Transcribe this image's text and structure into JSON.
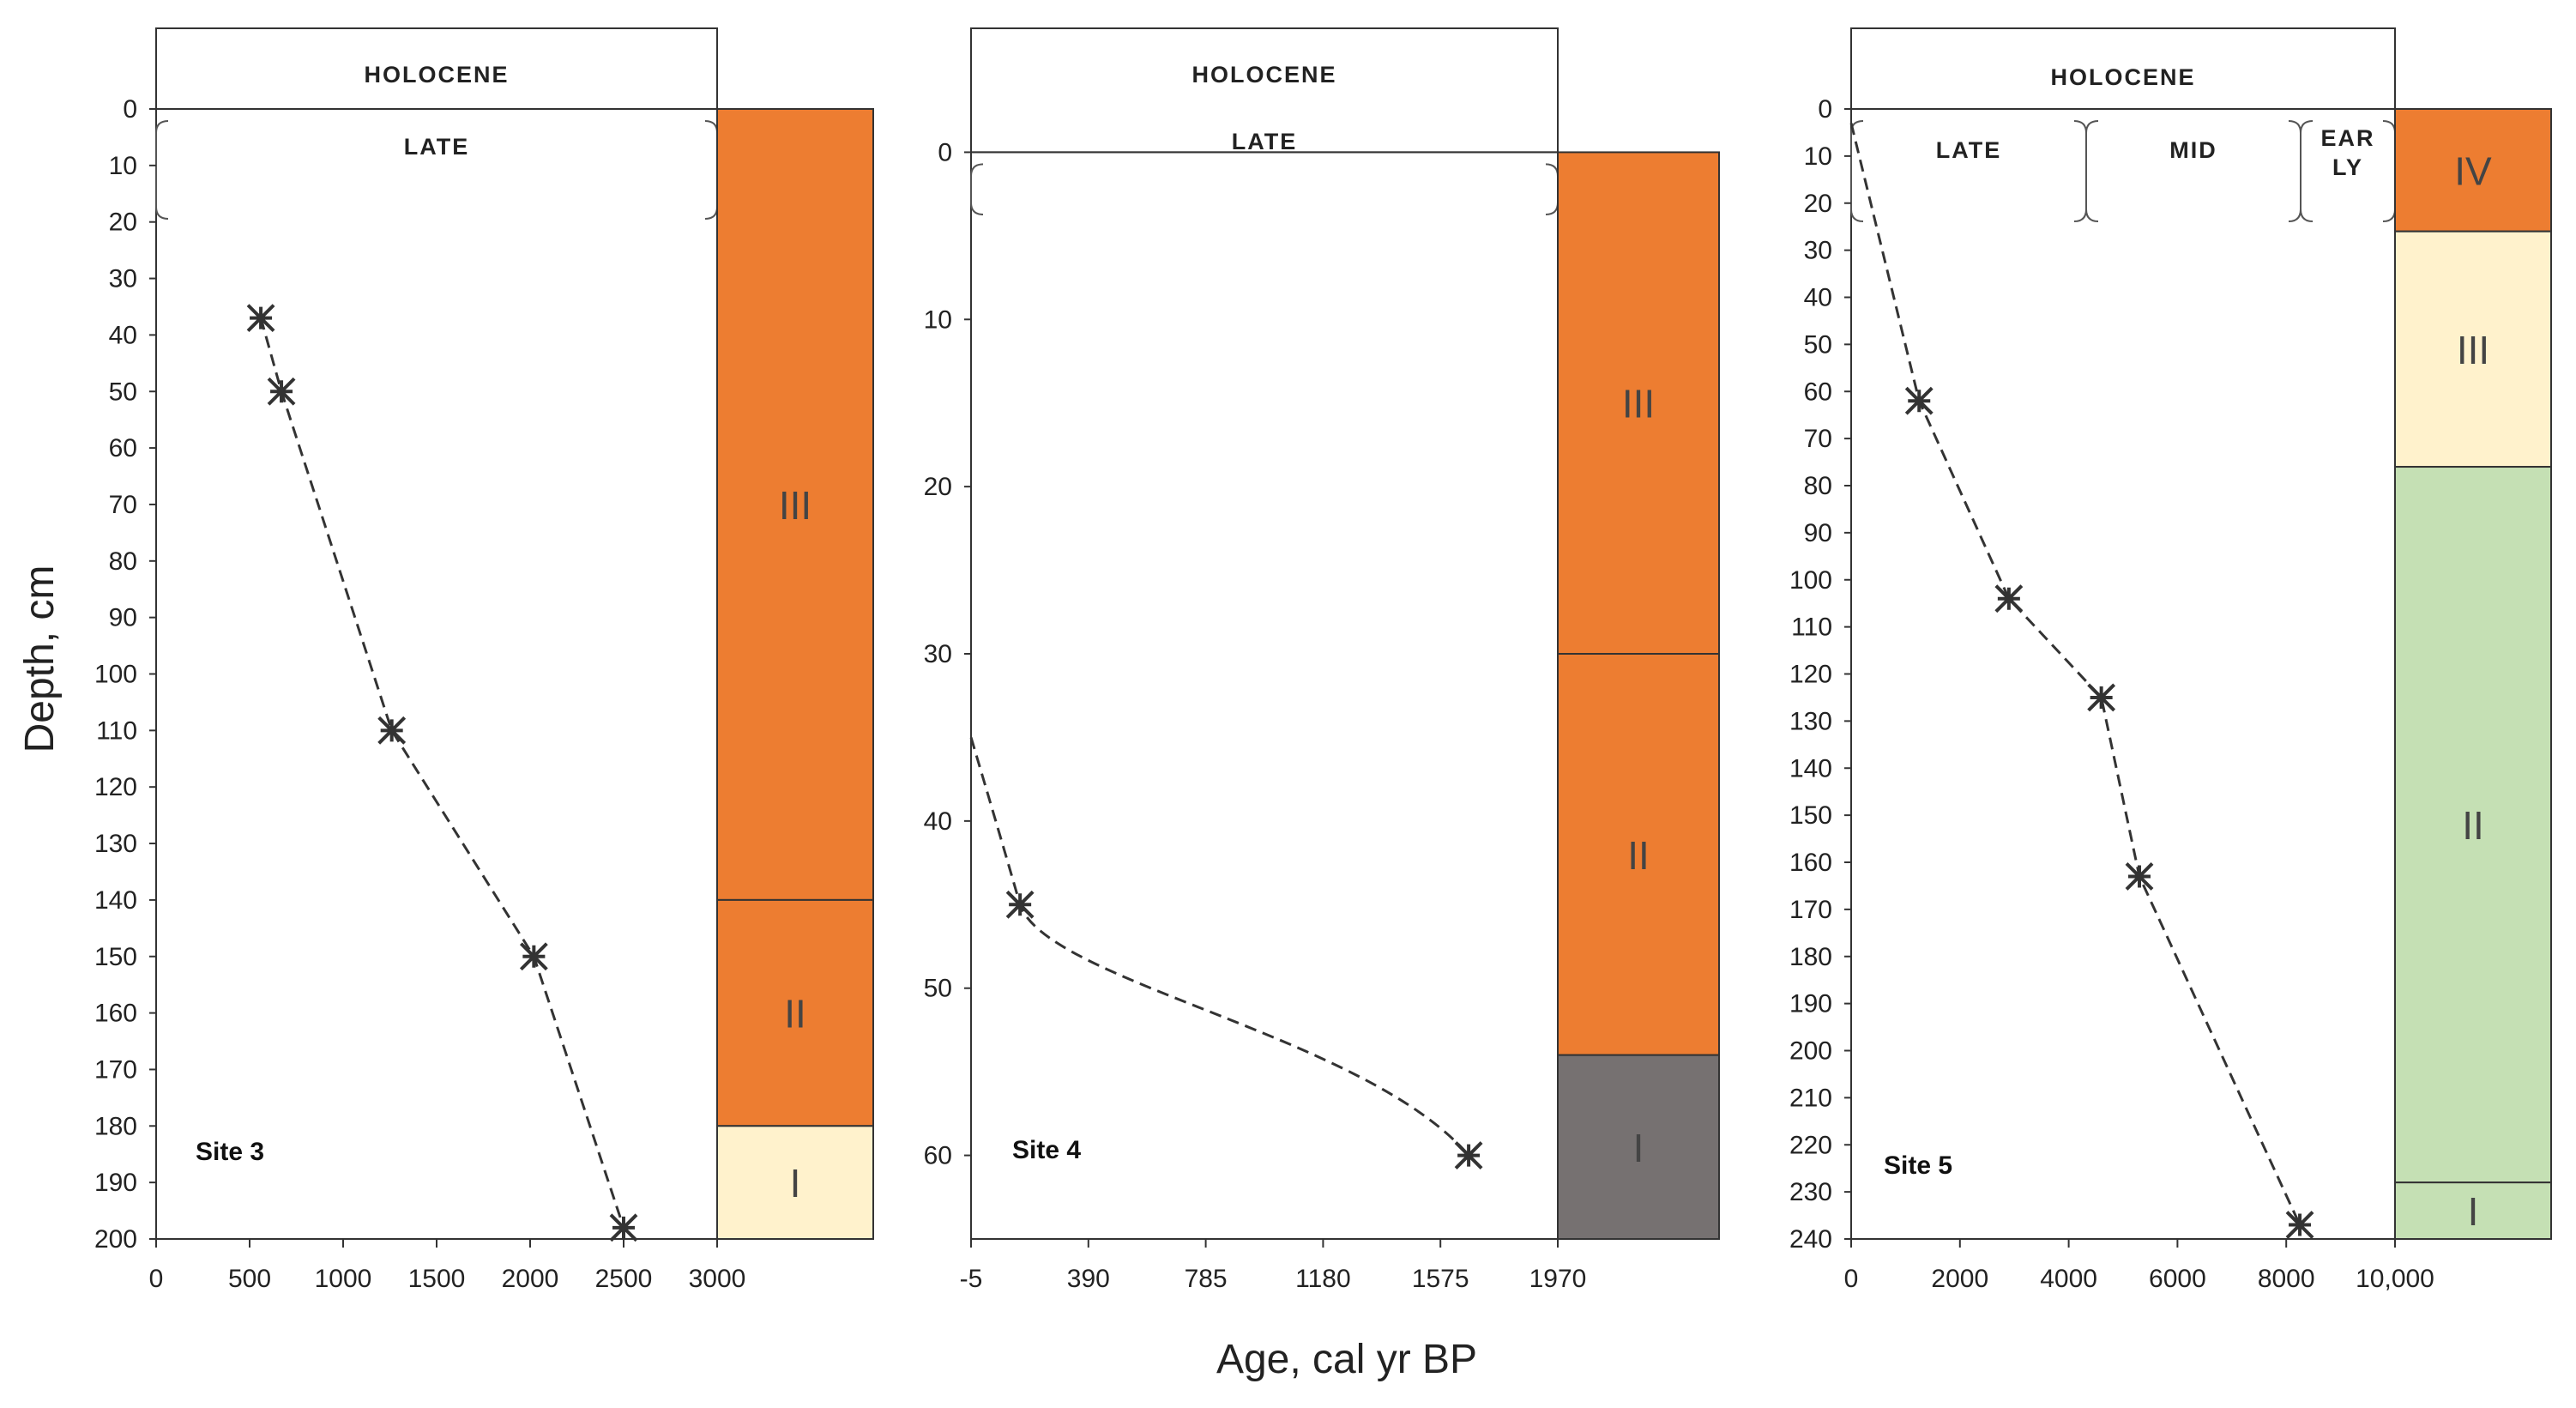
{
  "chart_data": [
    {
      "type": "line",
      "site_label": "Site 3",
      "epoch_label": "HOLOCENE",
      "sub_epochs": [
        {
          "label": "LATE"
        }
      ],
      "x": [
        560,
        670,
        1260,
        2020,
        2500
      ],
      "y": [
        37,
        50,
        110,
        150,
        198
      ],
      "xlim": [
        0,
        3000
      ],
      "ylim": [
        0,
        200
      ],
      "x_ticks": [
        0,
        500,
        1000,
        1500,
        2000,
        2500,
        3000
      ],
      "x_tick_labels": [
        "0",
        "500",
        "1000",
        "1500",
        "2000",
        "2500",
        "3000"
      ],
      "y_ticks": [
        0,
        10,
        20,
        30,
        40,
        50,
        60,
        70,
        80,
        90,
        100,
        110,
        120,
        130,
        140,
        150,
        160,
        170,
        180,
        190,
        200
      ],
      "y_tick_labels": [
        "0",
        "10",
        "20",
        "30",
        "40",
        "50",
        "60",
        "70",
        "80",
        "90",
        "100",
        "110",
        "120",
        "130",
        "140",
        "150",
        "160",
        "170",
        "180",
        "190",
        "200"
      ],
      "units": [
        {
          "label": "III",
          "top": 0,
          "bottom": 140,
          "color": "#ED7D31"
        },
        {
          "label": "II",
          "top": 140,
          "bottom": 180,
          "color": "#ED7D31"
        },
        {
          "label": "I",
          "top": 180,
          "bottom": 200,
          "color": "#FFF2CC"
        }
      ]
    },
    {
      "type": "line",
      "site_label": "Site 4",
      "epoch_label": "HOLOCENE",
      "sub_epochs": [
        {
          "label": "LATE"
        }
      ],
      "x": [
        160,
        1670
      ],
      "y": [
        45,
        60
      ],
      "curve_start": [
        -5,
        35
      ],
      "xlim": [
        -5,
        1970
      ],
      "ylim": [
        -5,
        65
      ],
      "x_ticks": [
        -5,
        390,
        785,
        1180,
        1575,
        1970
      ],
      "x_tick_labels": [
        "-5",
        "390",
        "785",
        "1180",
        "1575",
        "1970"
      ],
      "y_ticks": [
        0,
        10,
        20,
        30,
        40,
        50,
        60
      ],
      "y_tick_labels": [
        "0",
        "10",
        "20",
        "30",
        "40",
        "50",
        "60"
      ],
      "units": [
        {
          "label": "III",
          "top": 0,
          "bottom": 30,
          "color": "#ED7D31"
        },
        {
          "label": "II",
          "top": 30,
          "bottom": 54,
          "color": "#ED7D31"
        },
        {
          "label": "I",
          "top": 54,
          "bottom": 65,
          "color": "#767171"
        }
      ]
    },
    {
      "type": "line",
      "site_label": "Site 5",
      "epoch_label": "HOLOCENE",
      "sub_epochs": [
        {
          "label": "LATE"
        },
        {
          "label": "MID"
        },
        {
          "label": "EAR\nLY"
        }
      ],
      "x": [
        0,
        1250,
        2900,
        4600,
        5300,
        8250
      ],
      "y": [
        3,
        62,
        104,
        125,
        163,
        237
      ],
      "xlim": [
        0,
        10000
      ],
      "ylim": [
        0,
        240
      ],
      "x_ticks": [
        0,
        2000,
        4000,
        6000,
        8000,
        10000
      ],
      "x_tick_labels": [
        "0",
        "2000",
        "4000",
        "6000",
        "8000",
        "10,000"
      ],
      "y_ticks": [
        0,
        10,
        20,
        30,
        40,
        50,
        60,
        70,
        80,
        90,
        100,
        110,
        120,
        130,
        140,
        150,
        160,
        170,
        180,
        190,
        200,
        210,
        220,
        230,
        240
      ],
      "y_tick_labels": [
        "0",
        "10",
        "20",
        "30",
        "40",
        "50",
        "60",
        "70",
        "80",
        "90",
        "100",
        "110",
        "120",
        "130",
        "140",
        "150",
        "160",
        "170",
        "180",
        "190",
        "200",
        "210",
        "220",
        "230",
        "240"
      ],
      "units": [
        {
          "label": "IV",
          "top": 0,
          "bottom": 26,
          "color": "#ED7D31"
        },
        {
          "label": "III",
          "top": 26,
          "bottom": 76,
          "color": "#FFF2CC"
        },
        {
          "label": "II",
          "top": 76,
          "bottom": 228,
          "color": "#C5E0B4"
        },
        {
          "label": "I",
          "top": 228,
          "bottom": 240,
          "color": "#C5E0B4"
        }
      ]
    }
  ],
  "ylabel": "Depth, cm",
  "xlabel": "Age, cal yr BP"
}
